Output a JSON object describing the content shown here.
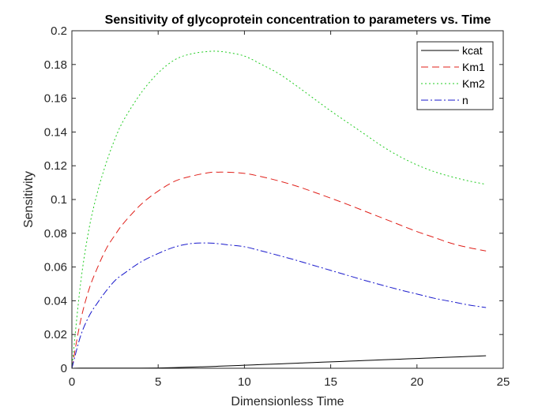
{
  "chart_data": {
    "type": "line",
    "title": "Sensitivity of glycoprotein concentration to parameters vs. Time",
    "xlabel": "Dimensionless Time",
    "ylabel": "Sensitivity",
    "xlim": [
      0,
      25
    ],
    "ylim": [
      0,
      0.2
    ],
    "xticks": [
      0,
      5,
      10,
      15,
      20,
      25
    ],
    "xtick_labels": [
      "0",
      "5",
      "10",
      "15",
      "20",
      "25"
    ],
    "yticks": [
      0,
      0.02,
      0.04,
      0.06,
      0.08,
      0.1,
      0.12,
      0.14,
      0.16,
      0.18,
      0.2
    ],
    "ytick_labels": [
      "0",
      "0.02",
      "0.04",
      "0.06",
      "0.08",
      "0.1",
      "0.12",
      "0.14",
      "0.16",
      "0.18",
      "0.2"
    ],
    "grid": false,
    "legend_position": "top-right",
    "x": [
      0,
      0.5,
      1,
      1.5,
      2,
      2.5,
      3,
      4,
      5,
      6,
      7,
      8,
      8.5,
      9,
      10,
      11,
      12,
      13,
      14,
      15,
      16,
      17,
      18,
      19,
      20,
      21,
      22,
      23,
      24
    ],
    "series": [
      {
        "name": "kcat",
        "color": "#000000",
        "dash": "solid",
        "values": [
          0,
          0.0001,
          0.0001,
          0.0001,
          0.0001,
          0.0001,
          0.0001,
          0.0001,
          0.0002,
          0.0004,
          0.0007,
          0.001,
          0.0012,
          0.0014,
          0.0018,
          0.0022,
          0.0026,
          0.003,
          0.0034,
          0.0038,
          0.0042,
          0.0046,
          0.005,
          0.0054,
          0.0058,
          0.0062,
          0.0066,
          0.007,
          0.0074
        ]
      },
      {
        "name": "Km1",
        "color": "#e0201a",
        "dash": "dashed",
        "values": [
          0,
          0.028,
          0.047,
          0.06,
          0.071,
          0.079,
          0.086,
          0.097,
          0.105,
          0.111,
          0.114,
          0.116,
          0.1162,
          0.1162,
          0.1155,
          0.1135,
          0.111,
          0.108,
          0.1045,
          0.1008,
          0.097,
          0.093,
          0.089,
          0.085,
          0.081,
          0.0775,
          0.074,
          0.0715,
          0.0695
        ]
      },
      {
        "name": "Km2",
        "color": "#22cc22",
        "dash": "dotted",
        "values": [
          0,
          0.05,
          0.083,
          0.105,
          0.122,
          0.136,
          0.147,
          0.163,
          0.175,
          0.183,
          0.1865,
          0.1878,
          0.1878,
          0.1872,
          0.185,
          0.18,
          0.1745,
          0.1675,
          0.16,
          0.1525,
          0.1455,
          0.1385,
          0.1315,
          0.1255,
          0.1205,
          0.1165,
          0.1135,
          0.111,
          0.109
        ]
      },
      {
        "name": "n",
        "color": "#1a1acc",
        "dash": "dashdot",
        "values": [
          0,
          0.019,
          0.031,
          0.039,
          0.046,
          0.052,
          0.056,
          0.063,
          0.068,
          0.072,
          0.074,
          0.0742,
          0.0738,
          0.0732,
          0.072,
          0.0695,
          0.0668,
          0.064,
          0.061,
          0.058,
          0.055,
          0.052,
          0.0492,
          0.0465,
          0.044,
          0.0415,
          0.0395,
          0.0375,
          0.036
        ]
      }
    ]
  }
}
